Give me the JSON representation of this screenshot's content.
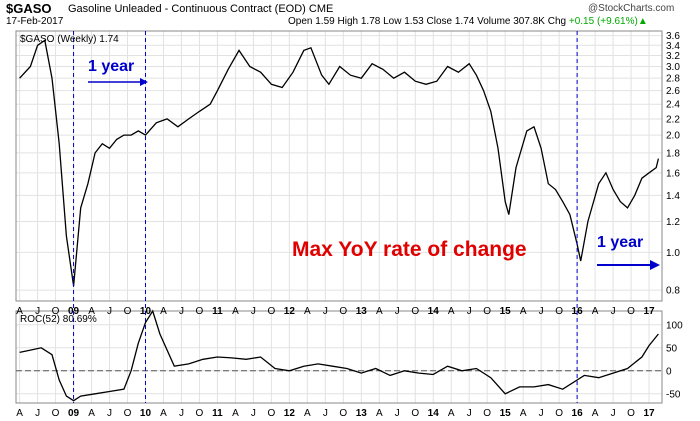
{
  "header": {
    "symbol": "$GASO",
    "name": "Gasoline Unleaded - Continuous Contract (EOD)",
    "exchange": "CME",
    "date": "17-Feb-2017",
    "open_label": "Open",
    "open": "1.59",
    "high_label": "High",
    "high": "1.78",
    "low_label": "Low",
    "low": "1.53",
    "close_label": "Close",
    "close": "1.74",
    "volume_label": "Volume",
    "volume": "307.8K",
    "chg_label": "Chg",
    "chg": "+0.15 (+9.61%)",
    "watermark": "@StockCharts.com"
  },
  "colors": {
    "price": "#000000",
    "annotation_blue": "#0000cc",
    "annotation_red": "#e00000",
    "grid": "#e2e2e2",
    "zero_line": "#555555",
    "up_arrow": "#0a0"
  },
  "annotations": {
    "one_year_left": "1 year",
    "one_year_right": "1 year",
    "max_yoy": "Max YoY rate of change"
  },
  "chart_data": [
    {
      "type": "line",
      "title": "$GASO (Weekly) 1.74",
      "legend_label": "$GASO (Weekly)",
      "legend_value": "1.74",
      "log_scale": true,
      "ylim": [
        0.75,
        3.7
      ],
      "y_ticks": [
        "0.8",
        "1.0",
        "1.2",
        "1.4",
        "1.6",
        "1.8",
        "2.0",
        "2.2",
        "2.4",
        "2.6",
        "2.8",
        "3.0",
        "3.2",
        "3.4",
        "3.6"
      ],
      "x_ticks": [
        "A",
        "J",
        "O",
        "09",
        "A",
        "J",
        "O",
        "10",
        "A",
        "J",
        "O",
        "11",
        "A",
        "J",
        "O",
        "12",
        "A",
        "J",
        "O",
        "13",
        "A",
        "J",
        "O",
        "14",
        "A",
        "J",
        "O",
        "15",
        "A",
        "J",
        "O",
        "16",
        "A",
        "J",
        "O",
        "17"
      ],
      "x": [
        2008.25,
        2008.4,
        2008.5,
        2008.6,
        2008.7,
        2008.8,
        2008.9,
        2008.95,
        2009.0,
        2009.1,
        2009.2,
        2009.3,
        2009.4,
        2009.5,
        2009.6,
        2009.7,
        2009.8,
        2009.9,
        2010.0,
        2010.15,
        2010.3,
        2010.45,
        2010.6,
        2010.75,
        2010.9,
        2011.0,
        2011.15,
        2011.3,
        2011.45,
        2011.6,
        2011.75,
        2011.9,
        2012.05,
        2012.2,
        2012.3,
        2012.45,
        2012.55,
        2012.7,
        2012.85,
        2013.0,
        2013.15,
        2013.3,
        2013.45,
        2013.6,
        2013.75,
        2013.9,
        2014.05,
        2014.2,
        2014.35,
        2014.5,
        2014.6,
        2014.7,
        2014.8,
        2014.9,
        2015.0,
        2015.05,
        2015.15,
        2015.3,
        2015.4,
        2015.5,
        2015.6,
        2015.7,
        2015.8,
        2015.9,
        2016.0,
        2016.05,
        2016.15,
        2016.3,
        2016.4,
        2016.5,
        2016.6,
        2016.7,
        2016.8,
        2016.9,
        2017.0,
        2017.1,
        2017.13
      ],
      "y": [
        2.8,
        3.0,
        3.4,
        3.5,
        2.8,
        1.9,
        1.1,
        0.95,
        0.82,
        1.3,
        1.5,
        1.8,
        1.9,
        1.85,
        1.95,
        2.0,
        2.0,
        2.05,
        2.0,
        2.15,
        2.2,
        2.1,
        2.2,
        2.3,
        2.4,
        2.6,
        2.95,
        3.3,
        3.0,
        2.9,
        2.7,
        2.65,
        2.9,
        3.3,
        3.35,
        2.85,
        2.7,
        3.0,
        2.85,
        2.8,
        3.05,
        2.95,
        2.8,
        2.9,
        2.75,
        2.7,
        2.75,
        3.0,
        2.9,
        3.05,
        2.85,
        2.6,
        2.3,
        1.85,
        1.35,
        1.25,
        1.65,
        2.05,
        2.1,
        1.85,
        1.5,
        1.45,
        1.35,
        1.25,
        1.05,
        0.95,
        1.2,
        1.5,
        1.6,
        1.45,
        1.35,
        1.3,
        1.4,
        1.55,
        1.6,
        1.65,
        1.74
      ]
    },
    {
      "type": "line",
      "title": "ROC(52) 80.69%",
      "legend_label": "ROC(52)",
      "legend_value": "80.69%",
      "ylim": [
        -70,
        130
      ],
      "y_ticks": [
        "-50",
        "0",
        "50",
        "100"
      ],
      "x_ticks": [
        "A",
        "J",
        "O",
        "09",
        "A",
        "J",
        "O",
        "10",
        "A",
        "J",
        "O",
        "11",
        "A",
        "J",
        "O",
        "12",
        "A",
        "J",
        "O",
        "13",
        "A",
        "J",
        "O",
        "14",
        "A",
        "J",
        "O",
        "15",
        "A",
        "J",
        "O",
        "16",
        "A",
        "J",
        "O",
        "17"
      ],
      "x": [
        2008.25,
        2008.4,
        2008.55,
        2008.7,
        2008.8,
        2008.9,
        2009.0,
        2009.1,
        2009.3,
        2009.5,
        2009.7,
        2009.8,
        2009.9,
        2010.0,
        2010.1,
        2010.2,
        2010.4,
        2010.6,
        2010.8,
        2011.0,
        2011.2,
        2011.4,
        2011.6,
        2011.8,
        2012.0,
        2012.2,
        2012.4,
        2012.6,
        2012.8,
        2013.0,
        2013.2,
        2013.4,
        2013.6,
        2013.8,
        2014.0,
        2014.2,
        2014.4,
        2014.6,
        2014.8,
        2015.0,
        2015.2,
        2015.4,
        2015.6,
        2015.8,
        2016.0,
        2016.1,
        2016.3,
        2016.5,
        2016.7,
        2016.9,
        2017.0,
        2017.13
      ],
      "y": [
        40,
        45,
        50,
        35,
        -20,
        -55,
        -65,
        -55,
        -50,
        -45,
        -40,
        0,
        60,
        105,
        130,
        80,
        10,
        15,
        25,
        30,
        28,
        25,
        30,
        5,
        0,
        10,
        15,
        10,
        5,
        -5,
        5,
        -10,
        0,
        -5,
        -8,
        10,
        0,
        5,
        -15,
        -50,
        -35,
        -35,
        -30,
        -40,
        -20,
        -10,
        -15,
        -5,
        5,
        30,
        55,
        80
      ]
    }
  ]
}
